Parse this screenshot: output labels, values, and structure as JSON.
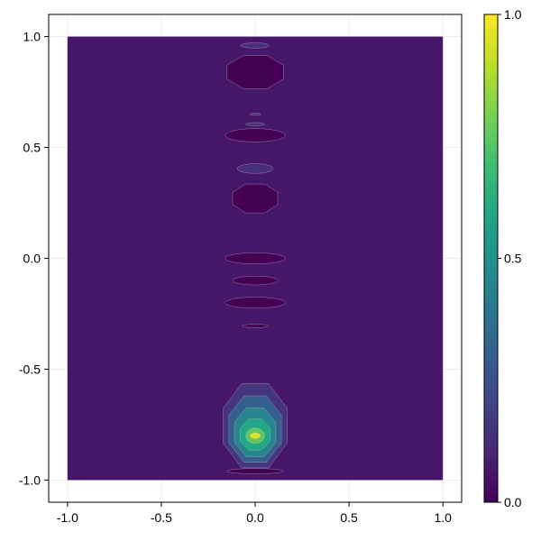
{
  "chart_data": {
    "type": "contour",
    "title": "",
    "xlabel": "",
    "ylabel": "",
    "xlim": [
      -1.1,
      1.1
    ],
    "ylim": [
      -1.1,
      1.1
    ],
    "data_extent": {
      "x": [
        -1.0,
        1.0
      ],
      "y": [
        -1.0,
        1.0
      ]
    },
    "grid": true,
    "x_ticks": [
      {
        "value": -1.0,
        "label": "-1.0"
      },
      {
        "value": -0.5,
        "label": "-0.5"
      },
      {
        "value": 0.0,
        "label": "0.0"
      },
      {
        "value": 0.5,
        "label": "0.5"
      },
      {
        "value": 1.0,
        "label": "1.0"
      }
    ],
    "y_ticks": [
      {
        "value": 1.0,
        "label": "1.0"
      },
      {
        "value": 0.5,
        "label": "0.5"
      },
      {
        "value": 0.0,
        "label": "0.0"
      },
      {
        "value": -0.5,
        "label": "-0.5"
      },
      {
        "value": -1.0,
        "label": "-1.0"
      }
    ],
    "colorbar": {
      "colormap": "viridis",
      "range": [
        0.0,
        1.0
      ],
      "ticks": [
        {
          "value": 1.0,
          "label": "1.0"
        },
        {
          "value": 0.5,
          "label": "0.5"
        },
        {
          "value": 0.0,
          "label": "0.0"
        }
      ]
    },
    "background_level": 0.06,
    "features": [
      {
        "cx": 0.0,
        "cy": 0.96,
        "rx": 0.075,
        "ry": 0.012,
        "level": 0.13,
        "shape": "ellipse"
      },
      {
        "cx": 0.0,
        "cy": 0.84,
        "rx": 0.15,
        "ry": 0.075,
        "level": 0.0,
        "shape": "octagon"
      },
      {
        "cx": 0.0,
        "cy": 0.65,
        "rx": 0.03,
        "ry": 0.005,
        "level": 0.13,
        "shape": "ellipse"
      },
      {
        "cx": 0.0,
        "cy": 0.605,
        "rx": 0.05,
        "ry": 0.007,
        "level": 0.13,
        "shape": "ellipse"
      },
      {
        "cx": 0.0,
        "cy": 0.555,
        "rx": 0.16,
        "ry": 0.03,
        "level": 0.0,
        "shape": "ellipse"
      },
      {
        "cx": 0.0,
        "cy": 0.405,
        "rx": 0.095,
        "ry": 0.022,
        "level": 0.13,
        "shape": "ellipse"
      },
      {
        "cx": 0.0,
        "cy": 0.27,
        "rx": 0.12,
        "ry": 0.065,
        "level": 0.0,
        "shape": "octagon"
      },
      {
        "cx": 0.0,
        "cy": 0.0,
        "rx": 0.16,
        "ry": 0.025,
        "level": 0.0,
        "shape": "ellipse"
      },
      {
        "cx": 0.0,
        "cy": -0.1,
        "rx": 0.12,
        "ry": 0.02,
        "level": 0.0,
        "shape": "ellipse"
      },
      {
        "cx": 0.0,
        "cy": -0.2,
        "rx": 0.16,
        "ry": 0.025,
        "level": 0.0,
        "shape": "ellipse"
      },
      {
        "cx": 0.0,
        "cy": -0.305,
        "rx": 0.07,
        "ry": 0.008,
        "level": 0.0,
        "shape": "ellipse"
      },
      {
        "cx": 0.0,
        "cy": -0.96,
        "rx": 0.15,
        "ry": 0.012,
        "level": 0.0,
        "shape": "ellipse"
      },
      {
        "cx": 0.0,
        "cy": -0.755,
        "rx": 0.17,
        "ry": 0.19,
        "level": 0.15,
        "shape": "octagon"
      },
      {
        "cx": 0.0,
        "cy": -0.77,
        "rx": 0.14,
        "ry": 0.15,
        "level": 0.3,
        "shape": "octagon"
      },
      {
        "cx": 0.0,
        "cy": -0.785,
        "rx": 0.11,
        "ry": 0.11,
        "level": 0.45,
        "shape": "octagon"
      },
      {
        "cx": 0.0,
        "cy": -0.795,
        "rx": 0.08,
        "ry": 0.07,
        "level": 0.6,
        "shape": "octagon"
      },
      {
        "cx": 0.0,
        "cy": -0.8,
        "rx": 0.05,
        "ry": 0.035,
        "level": 0.75,
        "shape": "ellipse"
      },
      {
        "cx": 0.0,
        "cy": -0.8,
        "rx": 0.028,
        "ry": 0.013,
        "level": 0.95,
        "shape": "ellipse"
      }
    ]
  }
}
